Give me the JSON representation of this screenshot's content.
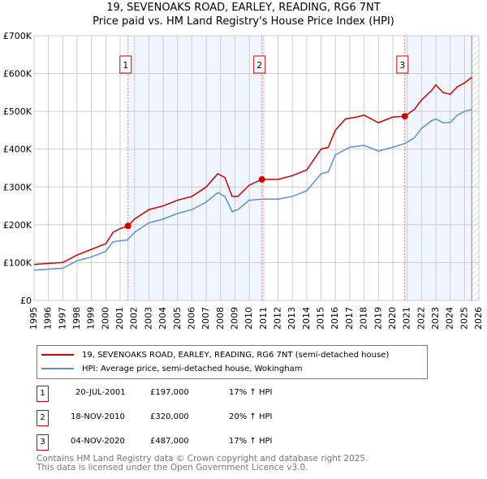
{
  "title": "19, SEVENOAKS ROAD, EARLEY, READING, RG6 7NT",
  "subtitle": "Price paid vs. HM Land Registry's House Price Index (HPI)",
  "chart_data": {
    "type": "line",
    "title": "19, SEVENOAKS ROAD, EARLEY, READING, RG6 7NT",
    "subtitle": "Price paid vs. HM Land Registry's House Price Index (HPI)",
    "xlim": [
      1995,
      2026
    ],
    "ylim": [
      0,
      700000
    ],
    "x_ticks": [
      "1995",
      "1996",
      "1997",
      "1998",
      "1999",
      "2000",
      "2001",
      "2002",
      "2003",
      "2004",
      "2005",
      "2006",
      "2007",
      "2008",
      "2009",
      "2010",
      "2011",
      "2012",
      "2013",
      "2014",
      "2015",
      "2016",
      "2017",
      "2018",
      "2019",
      "2020",
      "2021",
      "2022",
      "2023",
      "2024",
      "2025",
      "2026"
    ],
    "y_ticks": [
      "£0",
      "£100K",
      "£200K",
      "£300K",
      "£400K",
      "£500K",
      "£600K",
      "£700K"
    ],
    "grid": true,
    "legend_placement": "below",
    "series": [
      {
        "name": "19, SEVENOAKS ROAD, EARLEY, READING, RG6 7NT (semi-detached house)",
        "color": "#cc0000",
        "x": [
          1995,
          1996,
          1997,
          1998,
          1999,
          2000,
          2000.5,
          2001,
          2001.55,
          2002,
          2003,
          2004,
          2005,
          2006,
          2007,
          2007.8,
          2008.3,
          2008.8,
          2009.2,
          2010,
          2010.88,
          2011.5,
          2012,
          2013,
          2014,
          2015,
          2015.5,
          2016,
          2016.7,
          2017.5,
          2018,
          2019,
          2020,
          2020.84,
          2021.5,
          2022,
          2022.7,
          2023,
          2023.5,
          2024,
          2024.5,
          2025,
          2025.5
        ],
        "y": [
          95000,
          98000,
          100000,
          120000,
          135000,
          150000,
          180000,
          190000,
          197000,
          215000,
          240000,
          250000,
          265000,
          275000,
          300000,
          335000,
          325000,
          275000,
          275000,
          305000,
          320000,
          320000,
          320000,
          330000,
          345000,
          400000,
          405000,
          450000,
          480000,
          485000,
          490000,
          470000,
          485000,
          487000,
          505000,
          530000,
          555000,
          570000,
          550000,
          545000,
          565000,
          575000,
          590000
        ]
      },
      {
        "name": "HPI: Average price, semi-detached house, Wokingham",
        "color": "#5b8fd6",
        "x": [
          1995,
          1997,
          1998,
          1999,
          2000,
          2000.5,
          2001.5,
          2002,
          2003,
          2004,
          2005,
          2006,
          2007,
          2007.8,
          2008.3,
          2008.8,
          2009.2,
          2010,
          2011,
          2012,
          2013,
          2014,
          2015,
          2015.5,
          2016,
          2017,
          2018,
          2019,
          2020,
          2020.84,
          2021.5,
          2022,
          2022.7,
          2023,
          2023.5,
          2024,
          2024.5,
          2025,
          2025.5
        ],
        "y": [
          80000,
          85000,
          105000,
          115000,
          130000,
          155000,
          160000,
          180000,
          205000,
          215000,
          230000,
          240000,
          260000,
          285000,
          275000,
          235000,
          240000,
          265000,
          268000,
          268000,
          275000,
          290000,
          335000,
          340000,
          385000,
          405000,
          410000,
          395000,
          405000,
          415000,
          430000,
          455000,
          475000,
          480000,
          470000,
          470000,
          490000,
          500000,
          505000
        ]
      }
    ],
    "sales": [
      {
        "label": "1",
        "x": 2001.55,
        "y": 197000
      },
      {
        "label": "2",
        "x": 2010.88,
        "y": 320000
      },
      {
        "label": "3",
        "x": 2020.84,
        "y": 487000
      }
    ],
    "projection_start": 2025.5
  },
  "legend": [
    {
      "label": "19, SEVENOAKS ROAD, EARLEY, READING, RG6 7NT (semi-detached house)",
      "color": "#cc0000"
    },
    {
      "label": "HPI: Average price, semi-detached house, Wokingham",
      "color": "#5b8fd6"
    }
  ],
  "sales_table": [
    {
      "num": "1",
      "date": "20-JUL-2001",
      "price": "£197,000",
      "hpi": "17% ↑ HPI"
    },
    {
      "num": "2",
      "date": "18-NOV-2010",
      "price": "£320,000",
      "hpi": "20% ↑ HPI"
    },
    {
      "num": "3",
      "date": "04-NOV-2020",
      "price": "£487,000",
      "hpi": "17% ↑ HPI"
    }
  ],
  "footer": [
    "Contains HM Land Registry data © Crown copyright and database right 2025.",
    "This data is licensed under the Open Government Licence v3.0."
  ]
}
